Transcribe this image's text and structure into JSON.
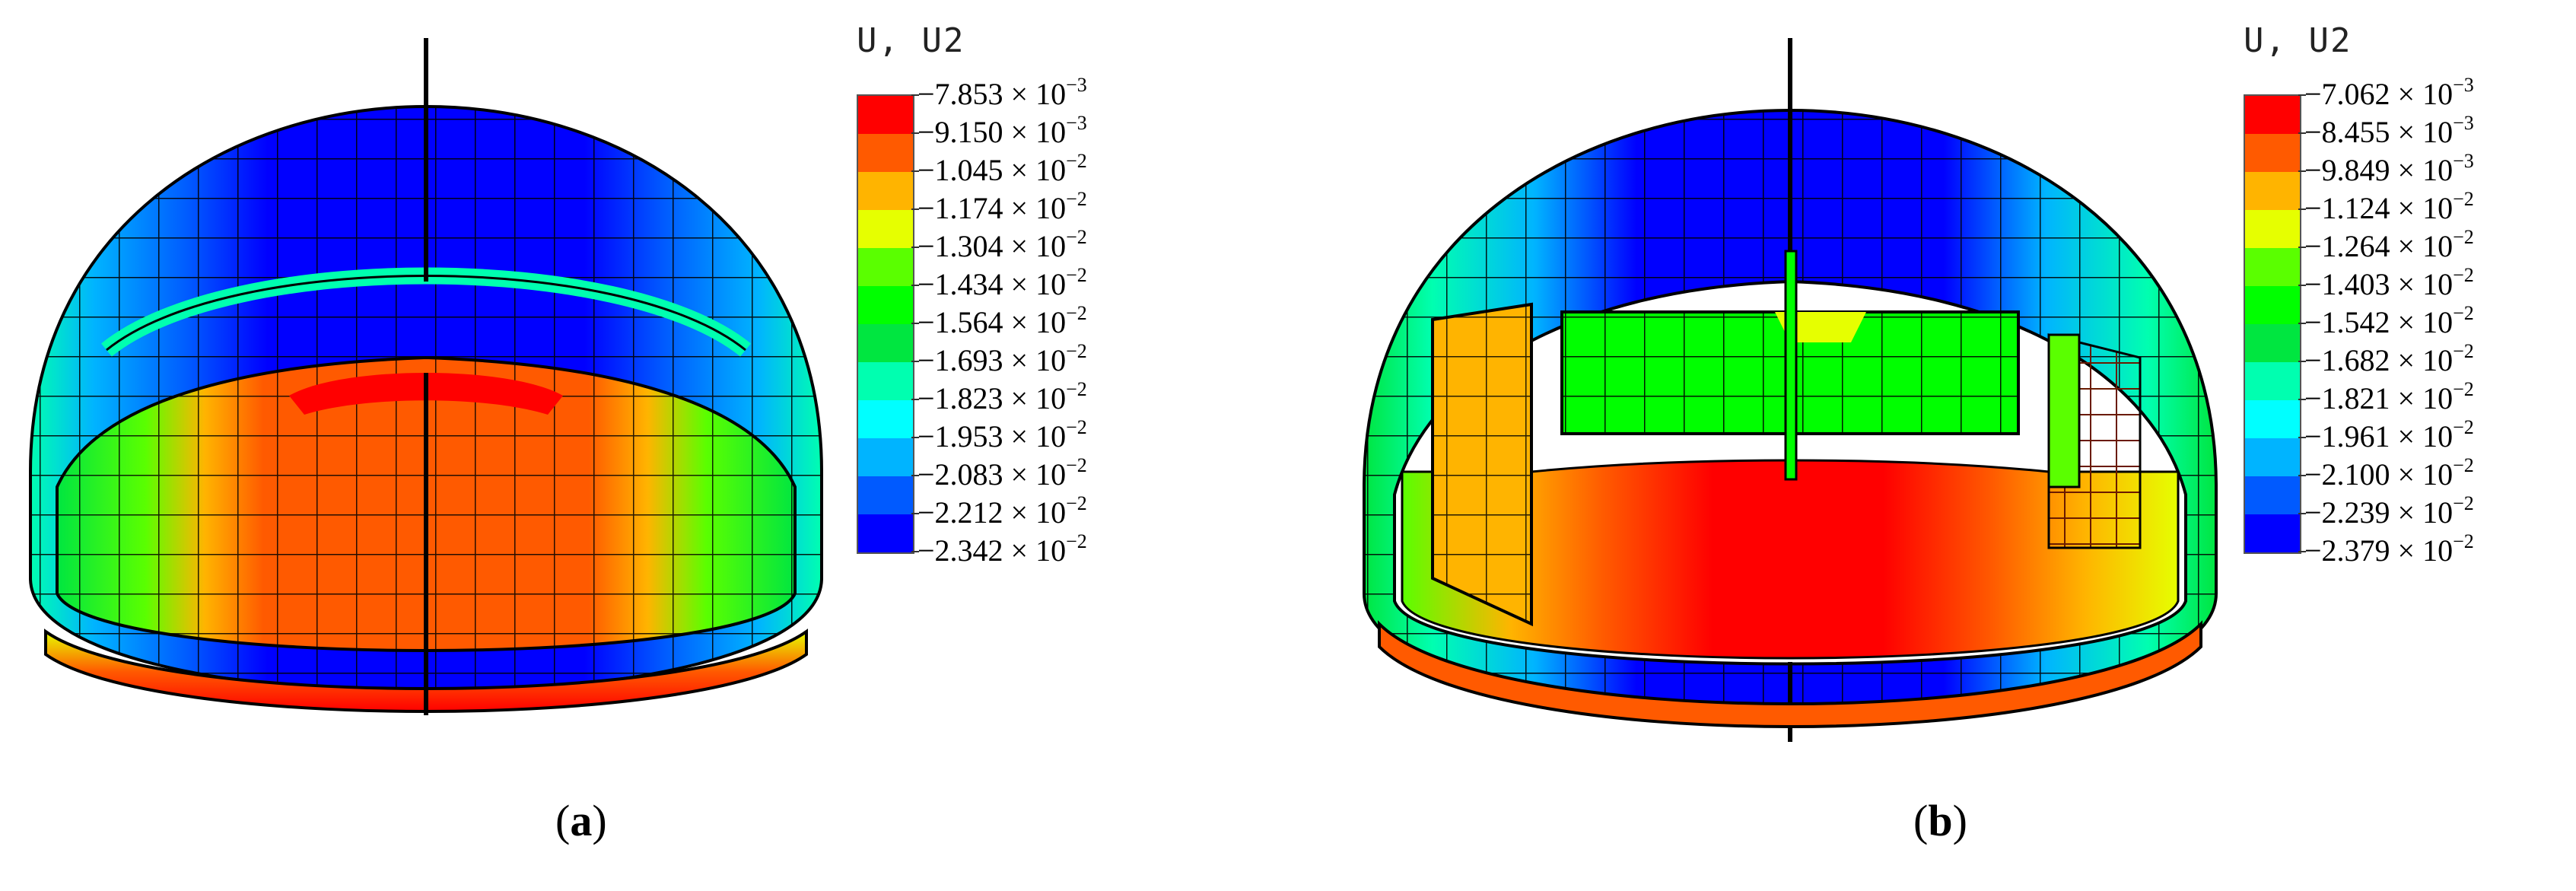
{
  "panels": [
    {
      "id": "a",
      "caption_open": "(",
      "caption_letter": "a",
      "caption_close": ")",
      "legend_title": "U, U2",
      "legend_values": [
        {
          "mant": "−7.853 × 10",
          "exp": "−3"
        },
        {
          "mant": "−9.150 × 10",
          "exp": "−3"
        },
        {
          "mant": "−1.045 × 10",
          "exp": "−2"
        },
        {
          "mant": "−1.174 × 10",
          "exp": "−2"
        },
        {
          "mant": "−1.304 × 10",
          "exp": "−2"
        },
        {
          "mant": "−1.434 × 10",
          "exp": "−2"
        },
        {
          "mant": "−1.564 × 10",
          "exp": "−2"
        },
        {
          "mant": "−1.693 × 10",
          "exp": "−2"
        },
        {
          "mant": "−1.823 × 10",
          "exp": "−2"
        },
        {
          "mant": "−1.953 × 10",
          "exp": "−2"
        },
        {
          "mant": "−2.083 × 10",
          "exp": "−2"
        },
        {
          "mant": "−2.212 × 10",
          "exp": "−2"
        },
        {
          "mant": "−2.342 × 10",
          "exp": "−2"
        }
      ]
    },
    {
      "id": "b",
      "caption_open": "(",
      "caption_letter": "b",
      "caption_close": ")",
      "legend_title": "U, U2",
      "legend_values": [
        {
          "mant": "−7.062 × 10",
          "exp": "−3"
        },
        {
          "mant": "−8.455 × 10",
          "exp": "−3"
        },
        {
          "mant": "−9.849 × 10",
          "exp": "−3"
        },
        {
          "mant": "−1.124 × 10",
          "exp": "−2"
        },
        {
          "mant": "−1.264 × 10",
          "exp": "−2"
        },
        {
          "mant": "−1.403 × 10",
          "exp": "−2"
        },
        {
          "mant": "−1.542 × 10",
          "exp": "−2"
        },
        {
          "mant": "−1.682 × 10",
          "exp": "−2"
        },
        {
          "mant": "−1.821 × 10",
          "exp": "−2"
        },
        {
          "mant": "−1.961 × 10",
          "exp": "−2"
        },
        {
          "mant": "−2.100 × 10",
          "exp": "−2"
        },
        {
          "mant": "−2.239 × 10",
          "exp": "−2"
        },
        {
          "mant": "−2.379 × 10",
          "exp": "−2"
        }
      ]
    }
  ],
  "contour_colors": [
    "#ff0000",
    "#ff5a00",
    "#ffb400",
    "#e6ff00",
    "#5aff00",
    "#00ff00",
    "#00e640",
    "#00ffb0",
    "#00ffff",
    "#00b4ff",
    "#005aff",
    "#0000ff"
  ]
}
